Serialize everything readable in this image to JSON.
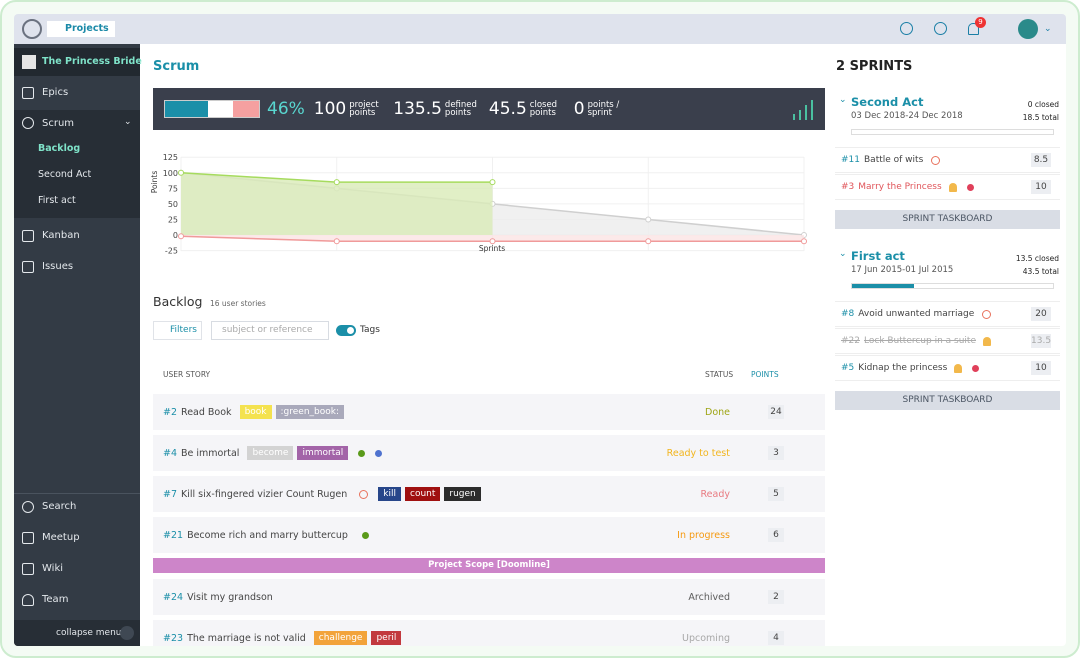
{
  "topbar": {
    "projects": "Projects",
    "notifications": "9"
  },
  "sidebar": {
    "project": "The Princess Bride",
    "epics": "Epics",
    "scrum": "Scrum",
    "scrum_items": [
      "Backlog",
      "Second Act",
      "First act"
    ],
    "kanban": "Kanban",
    "issues": "Issues",
    "bottom": [
      "Search",
      "Meetup",
      "Wiki",
      "Team"
    ],
    "collapse": "collapse menu"
  },
  "scrum": {
    "title": "Scrum",
    "progress": {
      "value": 46,
      "label": "46%"
    },
    "stats": [
      {
        "value": "100",
        "label": "project points"
      },
      {
        "value": "135.5",
        "label": "defined points"
      },
      {
        "value": "45.5",
        "label": "closed points"
      },
      {
        "value": "0",
        "label": "points / sprint"
      }
    ]
  },
  "burndown": {
    "type": "line",
    "ylabel": "Points",
    "xlabel": "Sprints",
    "x": [
      0,
      1,
      2,
      3,
      4
    ],
    "xlim": [
      0,
      4
    ],
    "ylim": [
      -25,
      125
    ],
    "yticks": [
      125,
      100,
      75,
      50,
      25,
      0,
      -25
    ],
    "grid": true,
    "series": [
      {
        "color": "#cfcfcf",
        "fill": "#ececec",
        "values": [
          100,
          75,
          50,
          25,
          0
        ]
      },
      {
        "color": "#a6db5e",
        "fill": "#d9ebb8",
        "values": [
          100,
          85,
          85,
          null,
          null
        ]
      },
      {
        "color": "#f09a9a",
        "fill": "#fbe3e3",
        "values": [
          -2,
          -10,
          -10,
          -10,
          -10
        ]
      }
    ]
  },
  "backlog": {
    "title": "Backlog",
    "count": "16 user stories",
    "filters": "Filters",
    "search": "subject or reference",
    "tags_toggle": "Tags",
    "columns": [
      "USER STORY",
      "STATUS",
      "POINTS"
    ],
    "rows": [
      {
        "ref": "#2",
        "subject": "Read Book",
        "tags": [
          {
            "name": "book",
            "color": "#f4e24f"
          },
          {
            "name": ":green_book:",
            "color": "#a9a9bb"
          }
        ],
        "status": "Done",
        "status_color": "#9ea514",
        "points": "24"
      },
      {
        "ref": "#4",
        "subject": "Be immortal",
        "tags": [
          {
            "name": "become",
            "color": "#d3d3d3"
          },
          {
            "name": "immortal",
            "color": "#a364a8"
          }
        ],
        "dots": [
          "#5a9a1a",
          "#4f72cf"
        ],
        "status": "Ready to test",
        "status_color": "#f2b51d",
        "points": "3"
      },
      {
        "ref": "#7",
        "subject": "Kill six-fingered vizier Count Rugen",
        "clock": true,
        "tags": [
          {
            "name": "kill",
            "color": "#27468a"
          },
          {
            "name": "count",
            "color": "#a01010"
          },
          {
            "name": "rugen",
            "color": "#2c2c2c"
          }
        ],
        "status": "Ready",
        "status_color": "#e87a80",
        "points": "5"
      },
      {
        "ref": "#21",
        "subject": "Become rich and marry buttercup",
        "dots": [
          "#5a9a1a"
        ],
        "status": "In progress",
        "status_color": "#f59a12",
        "points": "6"
      },
      {
        "ref": "#24",
        "subject": "Visit my grandson",
        "status": "Archived",
        "status_color": "#5b5b5b",
        "points": "2"
      },
      {
        "ref": "#23",
        "subject": "The marriage is not valid",
        "tags": [
          {
            "name": "challenge",
            "color": "#f2a33a"
          },
          {
            "name": "peril",
            "color": "#c2393e"
          }
        ],
        "status": "Upcoming",
        "status_color": "#a8a8a8",
        "points": "4"
      }
    ],
    "milestone": "Project Scope [Doomline]"
  },
  "sprints": {
    "title": "2 SPRINTS",
    "button": "SPRINT TASKBOARD",
    "list": [
      {
        "name": "Second Act",
        "dates": "03 Dec 2018-24 Dec 2018",
        "closed": {
          "value": 0,
          "label": "0 closed"
        },
        "total": {
          "value": 18.5,
          "label": "18.5 total"
        },
        "stories": [
          {
            "ref": "#11",
            "subject": "Battle of wits",
            "clock": true,
            "points": "8.5"
          },
          {
            "ref": "#3",
            "subject": "Marry the Princess",
            "color": "#e0555a",
            "icon": true,
            "dot": "#e0405a",
            "points": "10"
          }
        ]
      },
      {
        "name": "First act",
        "dates": "17 Jun 2015-01 Jul 2015",
        "closed": {
          "value": 13.5,
          "label": "13.5 closed"
        },
        "total": {
          "value": 43.5,
          "label": "43.5 total"
        },
        "stories": [
          {
            "ref": "#8",
            "subject": "Avoid unwanted marriage",
            "clock": true,
            "points": "20"
          },
          {
            "ref": "#22",
            "subject": "Lock Buttercup in a suite",
            "struck": true,
            "icon": true,
            "points": "13.5"
          },
          {
            "ref": "#5",
            "subject": "Kidnap the princess",
            "icon": true,
            "dot": "#e0405a",
            "points": "10"
          }
        ]
      }
    ]
  }
}
